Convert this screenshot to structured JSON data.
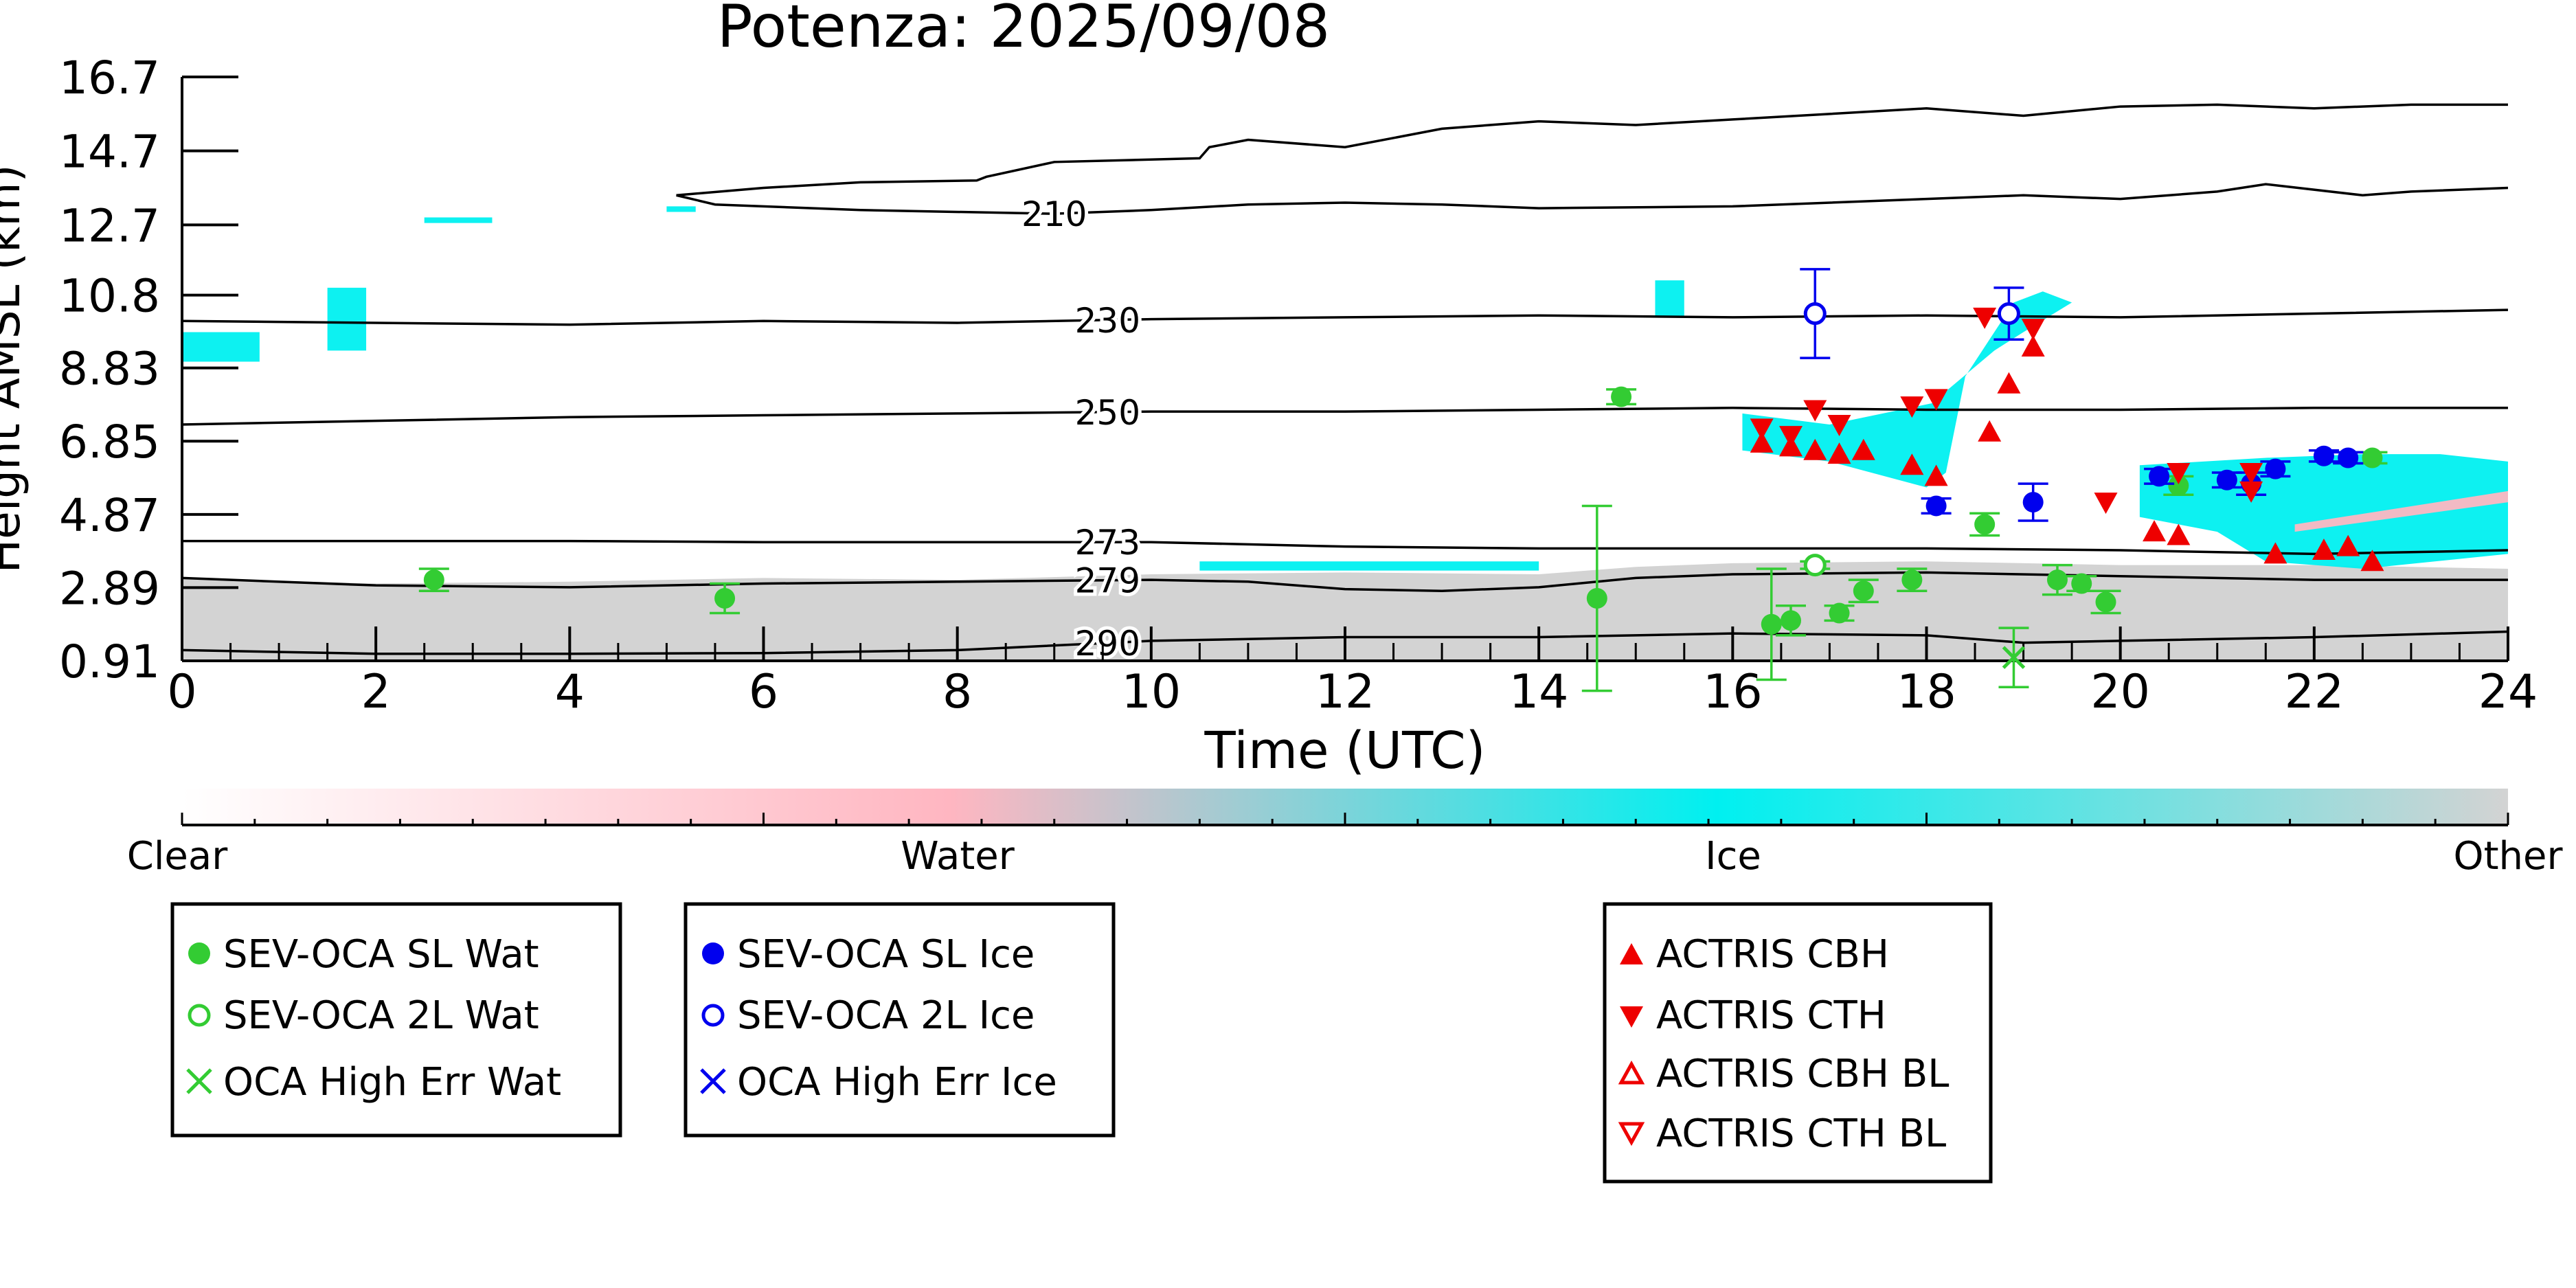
{
  "chart_data": {
    "type": "scatter",
    "title": "Potenza: 2025/09/08",
    "xlabel": "Time (UTC)",
    "ylabel": "Height AMSL (km)",
    "xlim": [
      0,
      24
    ],
    "ylim": [
      0.91,
      16.7
    ],
    "x_ticks": [
      "0",
      "2",
      "4",
      "6",
      "8",
      "10",
      "12",
      "14",
      "16",
      "18",
      "20",
      "22",
      "24"
    ],
    "y_ticks": [
      "0.91",
      "2.89",
      "4.87",
      "6.85",
      "8.83",
      "10.8",
      "12.7",
      "14.7",
      "16.7"
    ],
    "colors": {
      "water_points": "#33cc33",
      "ice_points": "#0000ee",
      "actris": "#ee0000",
      "ice_mask": "#00f0f0",
      "water_mask": "#ffb6c1",
      "other_mask": "#d3d3d3"
    },
    "colorbar": {
      "labels": [
        "Clear",
        "Water",
        "Ice",
        "Other"
      ]
    },
    "contours": [
      {
        "label": "210",
        "label_x": 9.0,
        "points": [
          [
            5.1,
            13.5
          ],
          [
            5.5,
            13.25
          ],
          [
            7,
            13.1
          ],
          [
            9,
            13.0
          ],
          [
            10,
            13.1
          ],
          [
            11,
            13.25
          ],
          [
            12,
            13.3
          ],
          [
            13,
            13.25
          ],
          [
            14,
            13.15
          ],
          [
            16,
            13.2
          ],
          [
            18,
            13.4
          ],
          [
            19,
            13.5
          ],
          [
            20,
            13.4
          ],
          [
            21,
            13.6
          ],
          [
            21.5,
            13.8
          ],
          [
            22.5,
            13.5
          ],
          [
            23,
            13.6
          ],
          [
            24,
            13.7
          ]
        ]
      },
      {
        "label": "",
        "label_x": null,
        "points": [
          [
            5.1,
            13.5
          ],
          [
            6,
            13.7
          ],
          [
            7,
            13.85
          ],
          [
            8.2,
            13.9
          ],
          [
            8.3,
            14.0
          ],
          [
            9,
            14.4
          ],
          [
            10.5,
            14.5
          ],
          [
            10.6,
            14.8
          ],
          [
            11,
            15.0
          ],
          [
            12,
            14.8
          ],
          [
            13,
            15.3
          ],
          [
            14,
            15.5
          ],
          [
            15,
            15.4
          ],
          [
            16,
            15.55
          ],
          [
            17,
            15.7
          ],
          [
            18,
            15.85
          ],
          [
            19,
            15.65
          ],
          [
            20,
            15.9
          ],
          [
            21,
            15.95
          ],
          [
            22,
            15.85
          ],
          [
            23,
            15.95
          ],
          [
            24,
            15.95
          ]
        ]
      },
      {
        "label": "230",
        "label_x": 9.55,
        "points": [
          [
            0,
            10.1
          ],
          [
            2,
            10.05
          ],
          [
            4,
            10.0
          ],
          [
            6,
            10.1
          ],
          [
            8,
            10.05
          ],
          [
            10,
            10.15
          ],
          [
            12,
            10.2
          ],
          [
            14,
            10.25
          ],
          [
            16,
            10.2
          ],
          [
            18,
            10.25
          ],
          [
            20,
            10.2
          ],
          [
            22,
            10.3
          ],
          [
            24,
            10.4
          ]
        ]
      },
      {
        "label": "250",
        "label_x": 9.55,
        "points": [
          [
            0,
            7.3
          ],
          [
            2,
            7.4
          ],
          [
            4,
            7.5
          ],
          [
            6,
            7.55
          ],
          [
            8,
            7.6
          ],
          [
            10,
            7.65
          ],
          [
            12,
            7.65
          ],
          [
            14,
            7.7
          ],
          [
            16,
            7.75
          ],
          [
            18,
            7.7
          ],
          [
            20,
            7.7
          ],
          [
            22,
            7.75
          ],
          [
            24,
            7.75
          ]
        ]
      },
      {
        "label": "273",
        "label_x": 9.55,
        "points": [
          [
            0,
            4.15
          ],
          [
            2,
            4.15
          ],
          [
            4,
            4.15
          ],
          [
            6,
            4.12
          ],
          [
            8,
            4.12
          ],
          [
            10,
            4.12
          ],
          [
            12,
            4.0
          ],
          [
            14,
            3.95
          ],
          [
            16,
            3.95
          ],
          [
            18,
            3.95
          ],
          [
            20,
            3.9
          ],
          [
            22,
            3.8
          ],
          [
            24,
            3.9
          ]
        ]
      },
      {
        "label": "279",
        "label_x": 9.55,
        "points": [
          [
            0,
            3.15
          ],
          [
            2,
            2.95
          ],
          [
            4,
            2.9
          ],
          [
            6,
            3.0
          ],
          [
            8,
            3.05
          ],
          [
            10,
            3.1
          ],
          [
            11,
            3.05
          ],
          [
            12,
            2.85
          ],
          [
            13,
            2.8
          ],
          [
            14,
            2.9
          ],
          [
            15,
            3.15
          ],
          [
            16,
            3.25
          ],
          [
            18,
            3.3
          ],
          [
            20,
            3.2
          ],
          [
            22,
            3.1
          ],
          [
            24,
            3.1
          ]
        ]
      },
      {
        "label": "290",
        "label_x": 9.55,
        "points": [
          [
            0,
            1.2
          ],
          [
            2,
            1.1
          ],
          [
            4,
            1.1
          ],
          [
            6,
            1.12
          ],
          [
            8,
            1.2
          ],
          [
            10,
            1.45
          ],
          [
            12,
            1.55
          ],
          [
            14,
            1.55
          ],
          [
            16,
            1.65
          ],
          [
            18,
            1.6
          ],
          [
            19,
            1.4
          ],
          [
            20,
            1.45
          ],
          [
            22,
            1.55
          ],
          [
            24,
            1.7
          ]
        ]
      }
    ],
    "mask_regions": [
      {
        "class": "other",
        "points": [
          [
            0,
            0.91
          ],
          [
            0,
            3.15
          ],
          [
            2,
            3.0
          ],
          [
            4,
            3.05
          ],
          [
            6,
            3.15
          ],
          [
            8,
            3.1
          ],
          [
            10,
            3.25
          ],
          [
            12,
            3.3
          ],
          [
            14,
            3.25
          ],
          [
            15,
            3.45
          ],
          [
            16,
            3.55
          ],
          [
            18,
            3.6
          ],
          [
            20,
            3.5
          ],
          [
            22,
            3.5
          ],
          [
            24,
            3.4
          ],
          [
            24,
            0.91
          ]
        ]
      },
      {
        "class": "ice",
        "points": [
          [
            16.1,
            7.6
          ],
          [
            17,
            7.3
          ],
          [
            18.1,
            7.9
          ],
          [
            18.2,
            8.2
          ],
          [
            18.7,
            9.3
          ],
          [
            19,
            9.8
          ],
          [
            19.5,
            10.6
          ],
          [
            19.2,
            10.9
          ],
          [
            18.9,
            10.6
          ],
          [
            18.4,
            8.6
          ],
          [
            18.2,
            6.0
          ],
          [
            18.0,
            5.6
          ],
          [
            17,
            6.3
          ],
          [
            16.1,
            6.6
          ]
        ]
      },
      {
        "class": "ice",
        "points": [
          [
            20.2,
            6.2
          ],
          [
            21.5,
            6.4
          ],
          [
            22.5,
            6.5
          ],
          [
            23.3,
            6.5
          ],
          [
            24,
            6.3
          ],
          [
            24,
            3.8
          ],
          [
            22.5,
            3.4
          ],
          [
            21.5,
            3.6
          ],
          [
            21.0,
            4.4
          ],
          [
            20.2,
            4.8
          ]
        ]
      },
      {
        "class": "ice",
        "points": [
          [
            0,
            9.0
          ],
          [
            0.8,
            9.0
          ],
          [
            0.8,
            9.8
          ],
          [
            0,
            9.8
          ]
        ]
      },
      {
        "class": "ice",
        "points": [
          [
            1.5,
            9.3
          ],
          [
            1.9,
            9.3
          ],
          [
            1.9,
            11.0
          ],
          [
            1.5,
            11.0
          ]
        ]
      },
      {
        "class": "ice",
        "points": [
          [
            10.5,
            3.35
          ],
          [
            14,
            3.35
          ],
          [
            14,
            3.6
          ],
          [
            10.5,
            3.6
          ]
        ]
      },
      {
        "class": "ice",
        "points": [
          [
            15.2,
            10.2
          ],
          [
            15.5,
            10.2
          ],
          [
            15.5,
            11.2
          ],
          [
            15.2,
            11.2
          ]
        ]
      },
      {
        "class": "ice",
        "points": [
          [
            2.5,
            12.75
          ],
          [
            3.2,
            12.75
          ],
          [
            3.2,
            12.9
          ],
          [
            2.5,
            12.9
          ]
        ]
      },
      {
        "class": "ice",
        "points": [
          [
            5.0,
            13.05
          ],
          [
            5.3,
            13.05
          ],
          [
            5.3,
            13.2
          ],
          [
            5.0,
            13.2
          ]
        ]
      },
      {
        "class": "water",
        "points": [
          [
            21.8,
            4.6
          ],
          [
            24,
            5.5
          ],
          [
            24,
            5.2
          ],
          [
            21.8,
            4.4
          ]
        ]
      }
    ],
    "series": [
      {
        "name": "SEV-OCA SL Wat",
        "marker": "filled-circle",
        "color": "#33cc33",
        "points": [
          {
            "x": 2.6,
            "y": 3.1,
            "err": 0.3
          },
          {
            "x": 5.6,
            "y": 2.6,
            "err": 0.4
          },
          {
            "x": 14.6,
            "y": 2.6,
            "err": 2.5
          },
          {
            "x": 14.85,
            "y": 8.05,
            "err": 0.2
          },
          {
            "x": 16.4,
            "y": 1.9,
            "err": 1.5
          },
          {
            "x": 16.6,
            "y": 2.0,
            "err": 0.4
          },
          {
            "x": 17.1,
            "y": 2.2,
            "err": 0.2
          },
          {
            "x": 17.35,
            "y": 2.8,
            "err": 0.3
          },
          {
            "x": 17.85,
            "y": 3.1,
            "err": 0.3
          },
          {
            "x": 18.6,
            "y": 4.6,
            "err": 0.3
          },
          {
            "x": 19.35,
            "y": 3.1,
            "err": 0.4
          },
          {
            "x": 19.6,
            "y": 3.0,
            "err": 0.2
          },
          {
            "x": 19.85,
            "y": 2.5,
            "err": 0.3
          },
          {
            "x": 20.6,
            "y": 5.65,
            "err": 0.25
          },
          {
            "x": 22.6,
            "y": 6.4,
            "err": 0.15
          }
        ]
      },
      {
        "name": "SEV-OCA 2L Wat",
        "marker": "open-circle",
        "color": "#33cc33",
        "points": [
          {
            "x": 16.85,
            "y": 3.5,
            "err": 0.1
          }
        ]
      },
      {
        "name": "OCA High Err Wat",
        "marker": "x",
        "color": "#33cc33",
        "points": [
          {
            "x": 18.9,
            "y": 1.0,
            "err": 0.8
          }
        ]
      },
      {
        "name": "SEV-OCA SL Ice",
        "marker": "filled-circle",
        "color": "#0000ee",
        "points": [
          {
            "x": 18.1,
            "y": 5.1,
            "err": 0.2
          },
          {
            "x": 19.1,
            "y": 5.2,
            "err": 0.5
          },
          {
            "x": 20.4,
            "y": 5.9,
            "err": 0.2
          },
          {
            "x": 21.1,
            "y": 5.8,
            "err": 0.2
          },
          {
            "x": 21.35,
            "y": 5.7,
            "err": 0.3
          },
          {
            "x": 21.6,
            "y": 6.1,
            "err": 0.2
          },
          {
            "x": 22.1,
            "y": 6.45,
            "err": 0.15
          },
          {
            "x": 22.35,
            "y": 6.4,
            "err": 0.15
          }
        ]
      },
      {
        "name": "SEV-OCA 2L Ice",
        "marker": "open-circle",
        "color": "#0000ee",
        "points": [
          {
            "x": 16.85,
            "y": 10.3,
            "err": 1.2
          },
          {
            "x": 18.85,
            "y": 10.3,
            "err": 0.7
          }
        ]
      },
      {
        "name": "OCA High Err Ice",
        "marker": "x",
        "color": "#0000ee",
        "points": []
      },
      {
        "name": "ACTRIS CBH",
        "marker": "triangle-up",
        "color": "#ee0000",
        "points": [
          {
            "x": 16.3,
            "y": 6.8
          },
          {
            "x": 16.6,
            "y": 6.7
          },
          {
            "x": 16.85,
            "y": 6.6
          },
          {
            "x": 17.1,
            "y": 6.5
          },
          {
            "x": 17.35,
            "y": 6.6
          },
          {
            "x": 17.85,
            "y": 6.2
          },
          {
            "x": 18.1,
            "y": 5.9
          },
          {
            "x": 18.65,
            "y": 7.1
          },
          {
            "x": 18.85,
            "y": 8.4
          },
          {
            "x": 19.1,
            "y": 9.4
          },
          {
            "x": 20.35,
            "y": 4.4
          },
          {
            "x": 20.6,
            "y": 4.3
          },
          {
            "x": 21.6,
            "y": 3.8
          },
          {
            "x": 22.1,
            "y": 3.9
          },
          {
            "x": 22.35,
            "y": 4.0
          },
          {
            "x": 22.6,
            "y": 3.6
          }
        ]
      },
      {
        "name": "ACTRIS CTH",
        "marker": "triangle-down",
        "color": "#ee0000",
        "points": [
          {
            "x": 16.3,
            "y": 7.2
          },
          {
            "x": 16.6,
            "y": 7.0
          },
          {
            "x": 16.85,
            "y": 7.7
          },
          {
            "x": 17.1,
            "y": 7.3
          },
          {
            "x": 17.85,
            "y": 7.8
          },
          {
            "x": 18.1,
            "y": 8.0
          },
          {
            "x": 18.6,
            "y": 10.2
          },
          {
            "x": 19.1,
            "y": 9.9
          },
          {
            "x": 19.85,
            "y": 5.2
          },
          {
            "x": 20.6,
            "y": 6.0
          },
          {
            "x": 21.35,
            "y": 5.5
          },
          {
            "x": 21.35,
            "y": 6.0
          }
        ]
      },
      {
        "name": "ACTRIS CBH BL",
        "marker": "open-triangle-up",
        "color": "#ee0000",
        "points": []
      },
      {
        "name": "ACTRIS CTH BL",
        "marker": "open-triangle-down",
        "color": "#ee0000",
        "points": []
      }
    ]
  }
}
